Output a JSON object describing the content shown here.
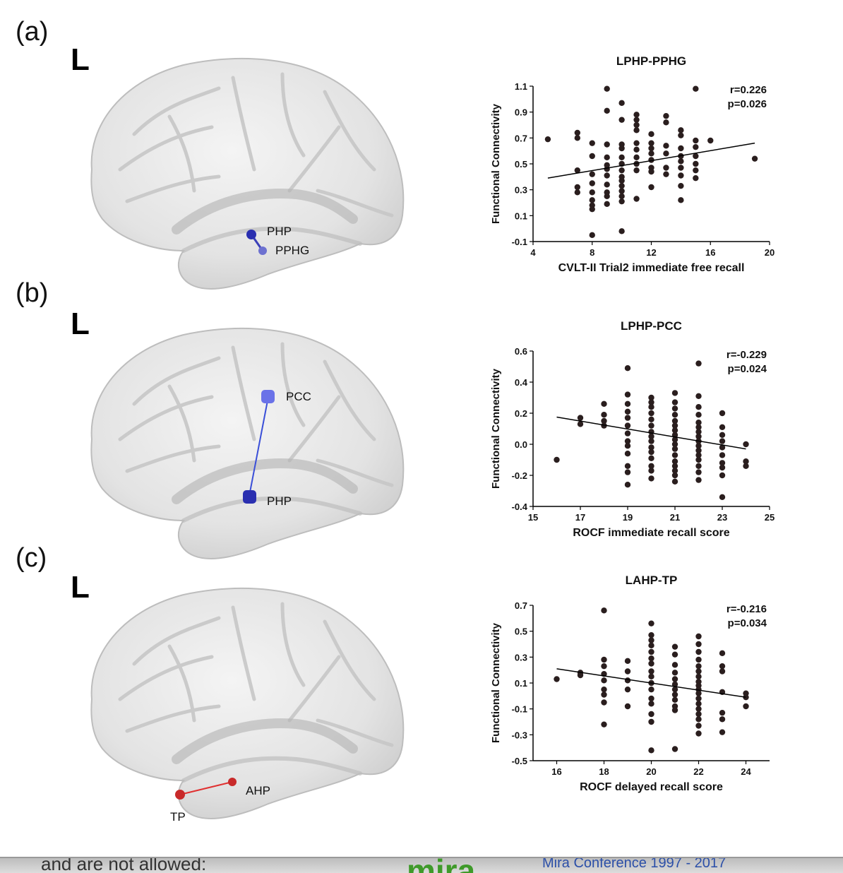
{
  "panels": [
    {
      "letter": "(a)",
      "side": "L",
      "nodes": [
        {
          "label": "PHP"
        },
        {
          "label": "PPHG"
        }
      ],
      "edge_color": "#3a3fb8",
      "node_colors": [
        "#2a2fb0",
        "#6d71d0"
      ]
    },
    {
      "letter": "(b)",
      "side": "L",
      "nodes": [
        {
          "label": "PCC"
        },
        {
          "label": "PHP"
        }
      ],
      "edge_color": "#3a4fd8",
      "node_colors": [
        "#6a72e8",
        "#2a2fb0"
      ]
    },
    {
      "letter": "(c)",
      "side": "L",
      "nodes": [
        {
          "label": "AHP"
        },
        {
          "label": "TP"
        }
      ],
      "edge_color": "#e03030",
      "node_colors": [
        "#c82a2a",
        "#c82a2a"
      ]
    }
  ],
  "chart_data": [
    {
      "type": "scatter",
      "title": "LPHP-PPHG",
      "xlabel": "CVLT-II Trial2 immediate free recall",
      "ylabel": "Functional Connectivity",
      "xlim": [
        4,
        20
      ],
      "ylim": [
        -0.1,
        1.1
      ],
      "xticks": [
        4,
        8,
        12,
        16,
        20
      ],
      "yticks": [
        -0.1,
        0.1,
        0.3,
        0.5,
        0.7,
        0.9,
        1.1
      ],
      "tick_labels_x": [
        "4",
        "8",
        "12",
        "16",
        "20"
      ],
      "tick_labels_y": [
        "-0.1",
        "0.1",
        "0.3",
        "0.5",
        "0.7",
        "0.9",
        "1.1"
      ],
      "annotation": [
        "r=0.226",
        "p=0.026"
      ],
      "fit": [
        [
          5,
          0.39
        ],
        [
          19,
          0.66
        ]
      ],
      "points": [
        [
          5,
          0.69
        ],
        [
          7,
          0.74
        ],
        [
          7,
          0.7
        ],
        [
          7,
          0.45
        ],
        [
          7,
          0.32
        ],
        [
          7,
          0.28
        ],
        [
          8,
          0.66
        ],
        [
          8,
          0.56
        ],
        [
          8,
          0.42
        ],
        [
          8,
          0.35
        ],
        [
          8,
          0.28
        ],
        [
          8,
          0.22
        ],
        [
          8,
          0.18
        ],
        [
          8,
          0.15
        ],
        [
          8,
          -0.05
        ],
        [
          9,
          1.08
        ],
        [
          9,
          0.91
        ],
        [
          9,
          0.65
        ],
        [
          9,
          0.55
        ],
        [
          9,
          0.49
        ],
        [
          9,
          0.46
        ],
        [
          9,
          0.41
        ],
        [
          9,
          0.34
        ],
        [
          9,
          0.28
        ],
        [
          9,
          0.25
        ],
        [
          9,
          0.19
        ],
        [
          10,
          0.97
        ],
        [
          10,
          0.84
        ],
        [
          10,
          0.65
        ],
        [
          10,
          0.62
        ],
        [
          10,
          0.55
        ],
        [
          10,
          0.5
        ],
        [
          10,
          0.45
        ],
        [
          10,
          0.4
        ],
        [
          10,
          0.37
        ],
        [
          10,
          0.33
        ],
        [
          10,
          0.29
        ],
        [
          10,
          0.25
        ],
        [
          10,
          0.21
        ],
        [
          10,
          -0.02
        ],
        [
          11,
          0.88
        ],
        [
          11,
          0.84
        ],
        [
          11,
          0.8
        ],
        [
          11,
          0.76
        ],
        [
          11,
          0.66
        ],
        [
          11,
          0.61
        ],
        [
          11,
          0.55
        ],
        [
          11,
          0.5
        ],
        [
          11,
          0.45
        ],
        [
          11,
          0.23
        ],
        [
          12,
          0.73
        ],
        [
          12,
          0.66
        ],
        [
          12,
          0.62
        ],
        [
          12,
          0.58
        ],
        [
          12,
          0.53
        ],
        [
          12,
          0.47
        ],
        [
          12,
          0.44
        ],
        [
          12,
          0.32
        ],
        [
          13,
          0.87
        ],
        [
          13,
          0.82
        ],
        [
          13,
          0.64
        ],
        [
          13,
          0.58
        ],
        [
          13,
          0.47
        ],
        [
          13,
          0.42
        ],
        [
          14,
          0.76
        ],
        [
          14,
          0.72
        ],
        [
          14,
          0.62
        ],
        [
          14,
          0.56
        ],
        [
          14,
          0.52
        ],
        [
          14,
          0.47
        ],
        [
          14,
          0.41
        ],
        [
          14,
          0.33
        ],
        [
          14,
          0.22
        ],
        [
          15,
          1.08
        ],
        [
          15,
          0.68
        ],
        [
          15,
          0.63
        ],
        [
          15,
          0.56
        ],
        [
          15,
          0.5
        ],
        [
          15,
          0.45
        ],
        [
          15,
          0.39
        ],
        [
          16,
          0.68
        ],
        [
          19,
          0.54
        ]
      ]
    },
    {
      "type": "scatter",
      "title": "LPHP-PCC",
      "xlabel": "ROCF immediate recall score",
      "ylabel": "Functional Connectivity",
      "xlim": [
        15,
        25
      ],
      "ylim": [
        -0.4,
        0.6
      ],
      "xticks": [
        15,
        17,
        19,
        21,
        23,
        25
      ],
      "yticks": [
        -0.4,
        -0.2,
        0.0,
        0.2,
        0.4,
        0.6
      ],
      "tick_labels_x": [
        "15",
        "17",
        "19",
        "21",
        "23",
        "25"
      ],
      "tick_labels_y": [
        "-0.4",
        "-0.2",
        "0.0",
        "0.2",
        "0.4",
        "0.6"
      ],
      "annotation": [
        "r=-0.229",
        "p=0.024"
      ],
      "fit": [
        [
          16,
          0.175
        ],
        [
          24,
          -0.03
        ]
      ],
      "points": [
        [
          16,
          -0.1
        ],
        [
          17,
          0.17
        ],
        [
          17,
          0.13
        ],
        [
          18,
          0.26
        ],
        [
          18,
          0.19
        ],
        [
          18,
          0.15
        ],
        [
          18,
          0.12
        ],
        [
          19,
          0.49
        ],
        [
          19,
          0.32
        ],
        [
          19,
          0.26
        ],
        [
          19,
          0.21
        ],
        [
          19,
          0.17
        ],
        [
          19,
          0.12
        ],
        [
          19,
          0.07
        ],
        [
          19,
          0.02
        ],
        [
          19,
          -0.01
        ],
        [
          19,
          -0.06
        ],
        [
          19,
          -0.14
        ],
        [
          19,
          -0.18
        ],
        [
          19,
          -0.26
        ],
        [
          20,
          0.3
        ],
        [
          20,
          0.27
        ],
        [
          20,
          0.24
        ],
        [
          20,
          0.2
        ],
        [
          20,
          0.16
        ],
        [
          20,
          0.12
        ],
        [
          20,
          0.08
        ],
        [
          20,
          0.05
        ],
        [
          20,
          0.02
        ],
        [
          20,
          -0.02
        ],
        [
          20,
          -0.05
        ],
        [
          20,
          -0.09
        ],
        [
          20,
          -0.14
        ],
        [
          20,
          -0.17
        ],
        [
          20,
          -0.22
        ],
        [
          21,
          0.33
        ],
        [
          21,
          0.27
        ],
        [
          21,
          0.23
        ],
        [
          21,
          0.19
        ],
        [
          21,
          0.15
        ],
        [
          21,
          0.12
        ],
        [
          21,
          0.09
        ],
        [
          21,
          0.06
        ],
        [
          21,
          0.03
        ],
        [
          21,
          0.0
        ],
        [
          21,
          -0.03
        ],
        [
          21,
          -0.07
        ],
        [
          21,
          -0.11
        ],
        [
          21,
          -0.14
        ],
        [
          21,
          -0.17
        ],
        [
          21,
          -0.2
        ],
        [
          21,
          -0.24
        ],
        [
          22,
          0.52
        ],
        [
          22,
          0.31
        ],
        [
          22,
          0.24
        ],
        [
          22,
          0.19
        ],
        [
          22,
          0.14
        ],
        [
          22,
          0.11
        ],
        [
          22,
          0.08
        ],
        [
          22,
          0.05
        ],
        [
          22,
          0.02
        ],
        [
          22,
          -0.01
        ],
        [
          22,
          -0.04
        ],
        [
          22,
          -0.07
        ],
        [
          22,
          -0.1
        ],
        [
          22,
          -0.14
        ],
        [
          22,
          -0.18
        ],
        [
          22,
          -0.23
        ],
        [
          23,
          0.2
        ],
        [
          23,
          0.11
        ],
        [
          23,
          0.06
        ],
        [
          23,
          0.02
        ],
        [
          23,
          -0.02
        ],
        [
          23,
          -0.07
        ],
        [
          23,
          -0.12
        ],
        [
          23,
          -0.15
        ],
        [
          23,
          -0.2
        ],
        [
          23,
          -0.34
        ],
        [
          24,
          0.0
        ],
        [
          24,
          -0.11
        ],
        [
          24,
          -0.14
        ]
      ]
    },
    {
      "type": "scatter",
      "title": "LAHP-TP",
      "xlabel": "ROCF delayed recall score",
      "ylabel": "Functional Connectivity",
      "xlim": [
        15,
        25
      ],
      "ylim": [
        -0.5,
        0.7
      ],
      "xticks": [
        16,
        18,
        20,
        22,
        24
      ],
      "yticks": [
        -0.5,
        -0.3,
        -0.1,
        0.1,
        0.3,
        0.5,
        0.7
      ],
      "tick_labels_x": [
        "16",
        "18",
        "20",
        "22",
        "24"
      ],
      "tick_labels_y": [
        "-0.5",
        "-0.3",
        "-0.1",
        "0.1",
        "0.3",
        "0.5",
        "0.7"
      ],
      "annotation": [
        "r=-0.216",
        "p=0.034"
      ],
      "fit": [
        [
          16,
          0.21
        ],
        [
          24,
          -0.01
        ]
      ],
      "points": [
        [
          16,
          0.13
        ],
        [
          17,
          0.18
        ],
        [
          17,
          0.16
        ],
        [
          18,
          0.66
        ],
        [
          18,
          0.28
        ],
        [
          18,
          0.23
        ],
        [
          18,
          0.17
        ],
        [
          18,
          0.12
        ],
        [
          18,
          0.05
        ],
        [
          18,
          0.01
        ],
        [
          18,
          -0.05
        ],
        [
          18,
          -0.22
        ],
        [
          19,
          0.27
        ],
        [
          19,
          0.19
        ],
        [
          19,
          0.12
        ],
        [
          19,
          0.05
        ],
        [
          19,
          -0.08
        ],
        [
          20,
          0.56
        ],
        [
          20,
          0.47
        ],
        [
          20,
          0.43
        ],
        [
          20,
          0.39
        ],
        [
          20,
          0.34
        ],
        [
          20,
          0.29
        ],
        [
          20,
          0.25
        ],
        [
          20,
          0.19
        ],
        [
          20,
          0.15
        ],
        [
          20,
          0.1
        ],
        [
          20,
          0.05
        ],
        [
          20,
          -0.02
        ],
        [
          20,
          -0.06
        ],
        [
          20,
          -0.14
        ],
        [
          20,
          -0.2
        ],
        [
          20,
          -0.42
        ],
        [
          21,
          0.38
        ],
        [
          21,
          0.32
        ],
        [
          21,
          0.24
        ],
        [
          21,
          0.18
        ],
        [
          21,
          0.13
        ],
        [
          21,
          0.09
        ],
        [
          21,
          0.05
        ],
        [
          21,
          0.01
        ],
        [
          21,
          -0.03
        ],
        [
          21,
          -0.08
        ],
        [
          21,
          -0.11
        ],
        [
          21,
          -0.41
        ],
        [
          22,
          0.46
        ],
        [
          22,
          0.4
        ],
        [
          22,
          0.34
        ],
        [
          22,
          0.28
        ],
        [
          22,
          0.23
        ],
        [
          22,
          0.19
        ],
        [
          22,
          0.15
        ],
        [
          22,
          0.11
        ],
        [
          22,
          0.08
        ],
        [
          22,
          0.05
        ],
        [
          22,
          0.02
        ],
        [
          22,
          -0.02
        ],
        [
          22,
          -0.06
        ],
        [
          22,
          -0.1
        ],
        [
          22,
          -0.14
        ],
        [
          22,
          -0.18
        ],
        [
          22,
          -0.23
        ],
        [
          22,
          -0.29
        ],
        [
          23,
          0.33
        ],
        [
          23,
          0.23
        ],
        [
          23,
          0.19
        ],
        [
          23,
          0.03
        ],
        [
          23,
          -0.13
        ],
        [
          23,
          -0.18
        ],
        [
          23,
          -0.28
        ],
        [
          24,
          0.02
        ],
        [
          24,
          -0.01
        ],
        [
          24,
          -0.08
        ]
      ]
    }
  ],
  "footer": {
    "left_text": "and are not allowed:",
    "logo_text": "mira",
    "right_text": "Mira Conference 1997 - 2017",
    "logo_color": "#3f9a2a"
  }
}
